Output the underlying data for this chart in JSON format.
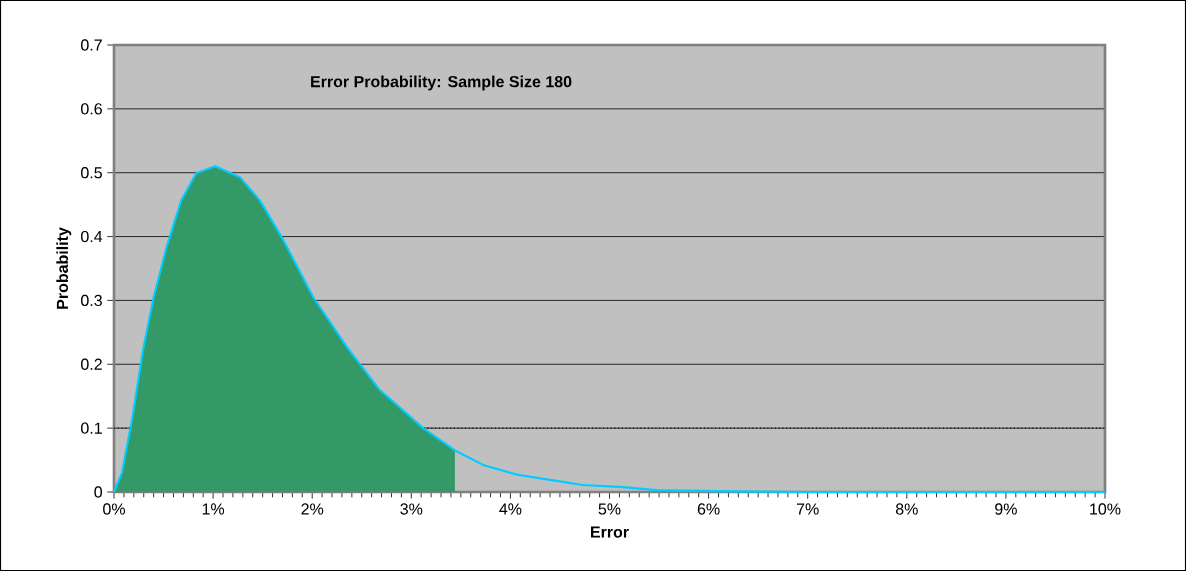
{
  "chart_data": {
    "type": "area",
    "title": "Error Probability: Sample Size 180",
    "xlabel": "Error",
    "ylabel": "Probability",
    "series": [
      {
        "color": "#339966",
        "x": [
          0,
          0.08,
          0.19,
          0.29,
          0.4,
          0.53,
          0.68,
          0.83,
          1.02,
          1.27,
          1.47,
          1.71,
          2.01,
          2.35,
          2.68,
          3.12,
          3.44
        ],
        "values": [
          0,
          0.03,
          0.12,
          0.22,
          0.305,
          0.383,
          0.457,
          0.499,
          0.51,
          0.493,
          0.457,
          0.394,
          0.305,
          0.227,
          0.16,
          0.1,
          0.065
        ]
      },
      {
        "type": "line",
        "color": "#00ccff",
        "x": [
          0,
          0.08,
          0.19,
          0.29,
          0.4,
          0.53,
          0.68,
          0.83,
          1.02,
          1.27,
          1.47,
          1.71,
          2.01,
          2.35,
          2.68,
          3.12,
          3.44,
          3.73,
          4.07,
          4.4,
          4.73,
          5.1,
          5.48,
          6.25,
          7,
          8,
          9,
          10
        ],
        "values": [
          0,
          0.03,
          0.12,
          0.22,
          0.305,
          0.383,
          0.457,
          0.499,
          0.51,
          0.493,
          0.457,
          0.394,
          0.305,
          0.227,
          0.16,
          0.1,
          0.065,
          0.042,
          0.027,
          0.019,
          0.011,
          0.008,
          0.003,
          0.001,
          0,
          0,
          0,
          0
        ]
      }
    ],
    "xlim": [
      0,
      10
    ],
    "ylim": [
      0,
      0.7
    ],
    "xticks": [
      {
        "value": 0,
        "label": "0%"
      },
      {
        "value": 1,
        "label": "1%"
      },
      {
        "value": 2,
        "label": "2%"
      },
      {
        "value": 3,
        "label": "3%"
      },
      {
        "value": 4,
        "label": "4%"
      },
      {
        "value": 5,
        "label": "5%"
      },
      {
        "value": 6,
        "label": "6%"
      },
      {
        "value": 7,
        "label": "7%"
      },
      {
        "value": 8,
        "label": "8%"
      },
      {
        "value": 9,
        "label": "9%"
      },
      {
        "value": 10,
        "label": "10%"
      }
    ],
    "yticks": [
      0,
      0.1,
      0.2,
      0.3,
      0.4,
      0.5,
      0.6,
      0.7
    ],
    "grid": "y",
    "ref_lines": [
      {
        "axis": "y",
        "value": 0.1,
        "line_style": "dotted",
        "color": "#000000"
      }
    ]
  }
}
